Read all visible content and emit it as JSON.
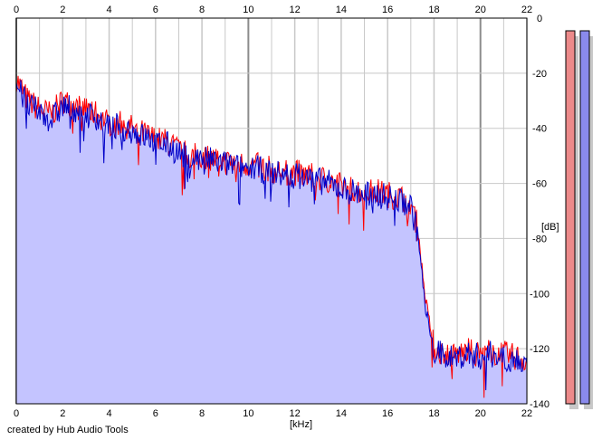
{
  "chart_data": {
    "type": "area",
    "title": "",
    "xlabel": "[kHz]",
    "ylabel": "[dB]",
    "xlim": [
      0,
      22
    ],
    "ylim": [
      -140,
      0
    ],
    "x_ticks": [
      0,
      2,
      4,
      6,
      8,
      10,
      12,
      14,
      16,
      18,
      20,
      22
    ],
    "y_ticks": [
      0,
      -20,
      -40,
      -60,
      -80,
      -100,
      -120,
      -140
    ],
    "grid": true,
    "colors": {
      "fill": "#c4c4ff",
      "left_channel": "#ff0000",
      "right_channel": "#0000c8",
      "grid_minor": "#c8c8c8",
      "grid_major": "#8c8c8c"
    },
    "series": [
      {
        "channel": "left",
        "x": [
          0,
          0.5,
          1,
          1.5,
          2,
          2.5,
          3,
          3.5,
          4,
          4.5,
          5,
          5.5,
          6,
          6.5,
          7,
          7.5,
          8,
          8.5,
          9,
          9.5,
          10,
          10.5,
          11,
          11.5,
          12,
          12.5,
          13,
          13.5,
          14,
          14.5,
          15,
          15.5,
          16,
          16.5,
          17,
          17.3,
          17.6,
          18,
          18.5,
          19,
          19.5,
          20,
          20.5,
          21,
          21.5,
          22
        ],
        "values": [
          -22,
          -30,
          -33,
          -35,
          -30,
          -32,
          -33,
          -35,
          -38,
          -38,
          -40,
          -42,
          -44,
          -45,
          -48,
          -50,
          -50,
          -51,
          -52,
          -53,
          -53,
          -54,
          -55,
          -56,
          -56,
          -57,
          -58,
          -59,
          -61,
          -62,
          -63,
          -63,
          -64,
          -65,
          -67,
          -76,
          -100,
          -120,
          -122,
          -122,
          -121,
          -122,
          -121,
          -122,
          -123,
          -124
        ]
      },
      {
        "channel": "right",
        "x": [
          0,
          0.5,
          1,
          1.5,
          2,
          2.5,
          3,
          3.5,
          4,
          4.5,
          5,
          5.5,
          6,
          6.5,
          7,
          7.5,
          8,
          8.5,
          9,
          9.5,
          10,
          10.5,
          11,
          11.5,
          12,
          12.5,
          13,
          13.5,
          14,
          14.5,
          15,
          15.5,
          16,
          16.5,
          17,
          17.3,
          17.6,
          18,
          18.5,
          19,
          19.5,
          20,
          20.5,
          21,
          21.5,
          22
        ],
        "values": [
          -24,
          -32,
          -34,
          -37,
          -32,
          -33,
          -35,
          -36,
          -40,
          -39,
          -41,
          -43,
          -45,
          -46,
          -49,
          -51,
          -51,
          -52,
          -53,
          -54,
          -54,
          -55,
          -56,
          -57,
          -57,
          -58,
          -59,
          -60,
          -62,
          -63,
          -64,
          -64,
          -65,
          -66,
          -68,
          -78,
          -103,
          -121,
          -123,
          -123,
          -122,
          -123,
          -122,
          -123,
          -124,
          -126
        ]
      }
    ]
  },
  "meter": {
    "left_level": 1.0,
    "right_level": 1.0
  },
  "credit_text": "created by Hub Audio Tools"
}
